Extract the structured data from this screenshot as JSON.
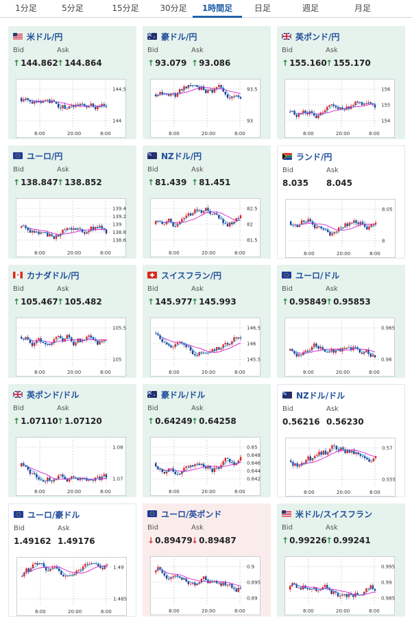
{
  "tabs": [
    {
      "label": "1分足"
    },
    {
      "label": "5分足"
    },
    {
      "label": "15分足"
    },
    {
      "label": "30分足"
    },
    {
      "label": "1時間足",
      "active": true
    },
    {
      "label": "日足"
    },
    {
      "label": "週足"
    },
    {
      "label": "月足"
    }
  ],
  "labels": {
    "bid": "Bid",
    "ask": "Ask"
  },
  "arrows": {
    "up": "↑",
    "down": "↓"
  },
  "colors": {
    "up_bg": "#e6f2ec",
    "down_bg": "#fbecec",
    "candle_up": "#e02020",
    "candle_down": "#1d3d8f",
    "ma_long": "#d020d0",
    "ma_short": "#20a0e0"
  },
  "pairs": [
    {
      "name": "米ドル/円",
      "flags": [
        "us",
        "jp"
      ],
      "bid": "144.862",
      "ask": "144.864",
      "dir": "up",
      "chart_data": {
        "type": "candlestick",
        "yticks": [
          "144.5",
          "144"
        ],
        "xticks": [
          "8:00",
          "20:00",
          "8:00"
        ]
      }
    },
    {
      "name": "豪ドル/円",
      "flags": [
        "au",
        "jp"
      ],
      "bid": "93.079",
      "ask": "93.086",
      "dir": "up",
      "chart_data": {
        "type": "candlestick",
        "yticks": [
          "93.5",
          "93"
        ],
        "xticks": [
          "8:00",
          "20:00",
          "8:00"
        ]
      }
    },
    {
      "name": "英ポンド/円",
      "flags": [
        "uk",
        "jp"
      ],
      "bid": "155.160",
      "ask": "155.170",
      "dir": "up",
      "chart_data": {
        "type": "candlestick",
        "yticks": [
          "156",
          "155",
          "154"
        ],
        "xticks": [
          "8:00",
          "20:00",
          "8:00"
        ]
      }
    },
    {
      "name": "ユーロ/円",
      "flags": [
        "eu",
        "jp"
      ],
      "bid": "138.847",
      "ask": "138.852",
      "dir": "up",
      "chart_data": {
        "type": "candlestick",
        "yticks": [
          "139.4",
          "139.2",
          "139",
          "138.8",
          "138.6"
        ],
        "xticks": [
          "8:00",
          "20:00",
          "8:00"
        ]
      }
    },
    {
      "name": "NZドル/円",
      "flags": [
        "nz",
        "jp"
      ],
      "bid": "81.439",
      "ask": "81.451",
      "dir": "up",
      "chart_data": {
        "type": "candlestick",
        "yticks": [
          "82.5",
          "82",
          "81.5"
        ],
        "xticks": [
          "8:00",
          "20:00",
          "8:00"
        ]
      }
    },
    {
      "name": "ランド/円",
      "flags": [
        "za",
        "jp"
      ],
      "bid": "8.035",
      "ask": "8.045",
      "dir": "flat",
      "chart_data": {
        "type": "candlestick",
        "yticks": [
          "8.05",
          "8"
        ],
        "xticks": [
          "8:00",
          "20:00",
          "8:00"
        ]
      }
    },
    {
      "name": "カナダドル/円",
      "flags": [
        "ca",
        "jp"
      ],
      "bid": "105.467",
      "ask": "105.482",
      "dir": "up",
      "chart_data": {
        "type": "candlestick",
        "yticks": [
          "105.5",
          "105"
        ],
        "xticks": [
          "8:00",
          "20:00",
          "8:00"
        ]
      }
    },
    {
      "name": "スイスフラン/円",
      "flags": [
        "ch",
        "jp"
      ],
      "bid": "145.977",
      "ask": "145.993",
      "dir": "up",
      "chart_data": {
        "type": "candlestick",
        "yticks": [
          "146.5",
          "146",
          "145.5"
        ],
        "xticks": [
          "8:00",
          "20:00",
          "8:00"
        ]
      }
    },
    {
      "name": "ユーロ/ドル",
      "flags": [
        "eu",
        "us"
      ],
      "bid": "0.95849",
      "ask": "0.95853",
      "dir": "up",
      "chart_data": {
        "type": "candlestick",
        "yticks": [
          "0.965",
          "0.96"
        ],
        "xticks": [
          "8:00",
          "20:00",
          "8:00"
        ]
      }
    },
    {
      "name": "英ポンド/ドル",
      "flags": [
        "uk",
        "us"
      ],
      "bid": "1.07110",
      "ask": "1.07120",
      "dir": "up",
      "chart_data": {
        "type": "candlestick",
        "yticks": [
          "1.08",
          "1.07"
        ],
        "xticks": [
          "8:00",
          "20:00",
          "8:00"
        ]
      }
    },
    {
      "name": "豪ドル/ドル",
      "flags": [
        "au",
        "us"
      ],
      "bid": "0.64249",
      "ask": "0.64258",
      "dir": "up",
      "chart_data": {
        "type": "candlestick",
        "yticks": [
          "0.65",
          "0.648",
          "0.646",
          "0.644",
          "0.642"
        ],
        "xticks": [
          "8:00",
          "20:00",
          "8:00"
        ]
      }
    },
    {
      "name": "NZドル/ドル",
      "flags": [
        "nz",
        "us"
      ],
      "bid": "0.56216",
      "ask": "0.56230",
      "dir": "flat",
      "chart_data": {
        "type": "candlestick",
        "yticks": [
          "0.57",
          "0.555"
        ],
        "xticks": [
          "8:00",
          "20:00",
          "8:00"
        ]
      }
    },
    {
      "name": "ユーロ/豪ドル",
      "flags": [
        "eu",
        "au"
      ],
      "bid": "1.49162",
      "ask": "1.49176",
      "dir": "flat",
      "chart_data": {
        "type": "candlestick",
        "yticks": [
          "1.49",
          "1.485"
        ],
        "xticks": [
          "8:00",
          "20:00",
          "8:00"
        ]
      }
    },
    {
      "name": "ユーロ/英ポンド",
      "flags": [
        "eu",
        "uk"
      ],
      "bid": "0.89479",
      "ask": "0.89487",
      "dir": "down",
      "chart_data": {
        "type": "candlestick",
        "yticks": [
          "0.9",
          "0.895",
          "0.89"
        ],
        "xticks": [
          "8:00",
          "20:00",
          "8:00"
        ]
      }
    },
    {
      "name": "米ドル/スイスフラン",
      "flags": [
        "us",
        "ch"
      ],
      "bid": "0.99226",
      "ask": "0.99241",
      "dir": "up",
      "chart_data": {
        "type": "candlestick",
        "yticks": [
          "0.995",
          "0.99",
          "0.985"
        ],
        "xticks": [
          "8:00",
          "20:00",
          "8:00"
        ]
      }
    }
  ]
}
